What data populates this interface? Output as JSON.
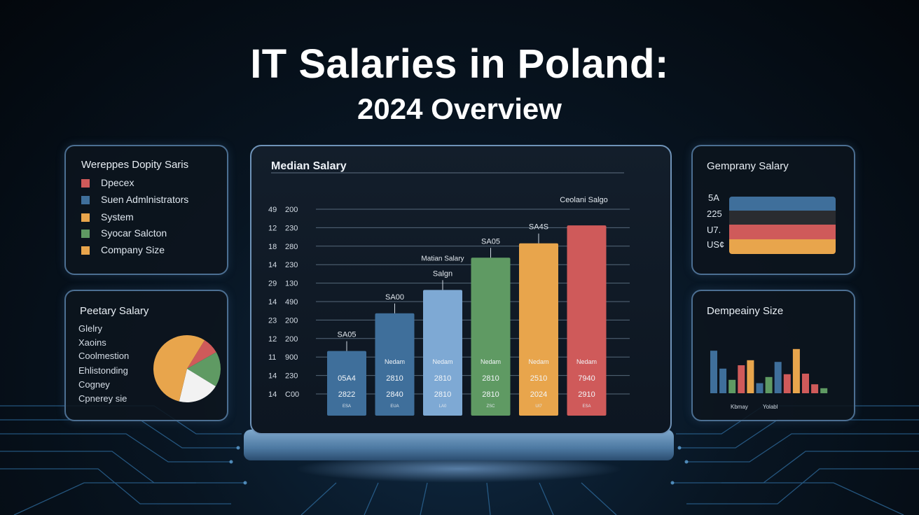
{
  "page": {
    "title_line1": "IT Salaries in Poland:",
    "title_line2": "2024 Overview"
  },
  "left_top_panel": {
    "title": "Wereppes Dopity Saris",
    "legend": [
      {
        "label": "Dpecex",
        "color": "#cf5a5a"
      },
      {
        "label": "Suen Admlnistrators",
        "color": "#3f6f9b"
      },
      {
        "label": "System",
        "color": "#e8a54c"
      },
      {
        "label": "Syocar Salcton",
        "color": "#5f9a63"
      },
      {
        "label": "Company Size",
        "color": "#e8a54c"
      }
    ]
  },
  "left_bottom_panel": {
    "title": "Peetary Salary",
    "items": [
      "Glelry",
      "Xaoins",
      "Coolmestion",
      "Ehlistonding",
      "Cogney",
      "Cpnerey sie"
    ]
  },
  "right_top_panel": {
    "title": "Gemprany Salary",
    "row_labels": [
      "5A",
      "225",
      "U7.",
      "US¢"
    ],
    "stripe_colors": [
      "#3f6f9b",
      "#2a2c30",
      "#cf5a5a",
      "#e8a54c"
    ]
  },
  "right_bottom_panel": {
    "title": "Dempeainy Size",
    "xlabels": [
      "Kbmay",
      "Yolabl"
    ]
  },
  "chart_data": [
    {
      "type": "bar",
      "title": "Median Salary",
      "annotation_top": "Ceolani Salgo",
      "y_tick_labels": [
        [
          "49",
          "200"
        ],
        [
          "12",
          "230"
        ],
        [
          "18",
          "280"
        ],
        [
          "14",
          "230"
        ],
        [
          "29",
          "130"
        ],
        [
          "14",
          "490"
        ],
        [
          "23",
          "200"
        ],
        [
          "12",
          "200"
        ],
        [
          "11",
          "900"
        ],
        [
          "14",
          "230"
        ],
        [
          "14",
          "C00"
        ]
      ],
      "values": [
        3.6,
        5.7,
        7.0,
        8.8,
        9.6,
        10.6
      ],
      "ylim": [
        0,
        11.5
      ],
      "bars": [
        {
          "color": "#3f6f9b",
          "top_label": "SA05",
          "inner_label": "",
          "value_text": "05A4",
          "year": "2822",
          "small": "ESA"
        },
        {
          "color": "#3f6f9b",
          "top_label": "SA00",
          "inner_label": "Nedam",
          "value_text": "2810",
          "year": "2840",
          "small": "EUA"
        },
        {
          "color": "#7ea9d4",
          "top_label": "Salgn",
          "top_label2": "Matian Salary",
          "inner_label": "Nedam",
          "value_text": "2810",
          "year": "2810",
          "small": "LA0"
        },
        {
          "color": "#5f9a63",
          "top_label": "SA05",
          "inner_label": "Nedam",
          "value_text": "2810",
          "year": "2810",
          "small": "ZSC"
        },
        {
          "color": "#e8a54c",
          "top_label": "SA4S",
          "inner_label": "Nedam",
          "value_text": "2510",
          "year": "2024",
          "small": "UI7"
        },
        {
          "color": "#cf5a5a",
          "top_label": "",
          "inner_label": "Nedam",
          "value_text": "7940",
          "year": "2910",
          "small": "ESA"
        }
      ]
    },
    {
      "type": "bar",
      "title": "Dempeainy Size",
      "values": [
        7.6,
        4.4,
        2.4,
        5.0,
        5.9,
        1.8,
        2.9,
        5.6,
        3.4,
        7.9,
        3.5,
        1.6,
        0.9
      ],
      "colors": [
        "#3f6f9b",
        "#3f6f9b",
        "#5f9a63",
        "#cf5a5a",
        "#e8a54c",
        "#3f6f9b",
        "#5f9a63",
        "#3f6f9b",
        "#cf5a5a",
        "#e8a54c",
        "#cf5a5a",
        "#cf5a5a",
        "#5f9a63"
      ],
      "ylim": [
        0,
        10
      ]
    },
    {
      "type": "pie",
      "title": "Peetary Salary",
      "values": [
        0.08,
        0.17,
        0.2,
        0.55
      ],
      "colors": [
        "#cf5a5a",
        "#5f9a63",
        "#f2f2f2",
        "#e8a54c"
      ]
    }
  ]
}
